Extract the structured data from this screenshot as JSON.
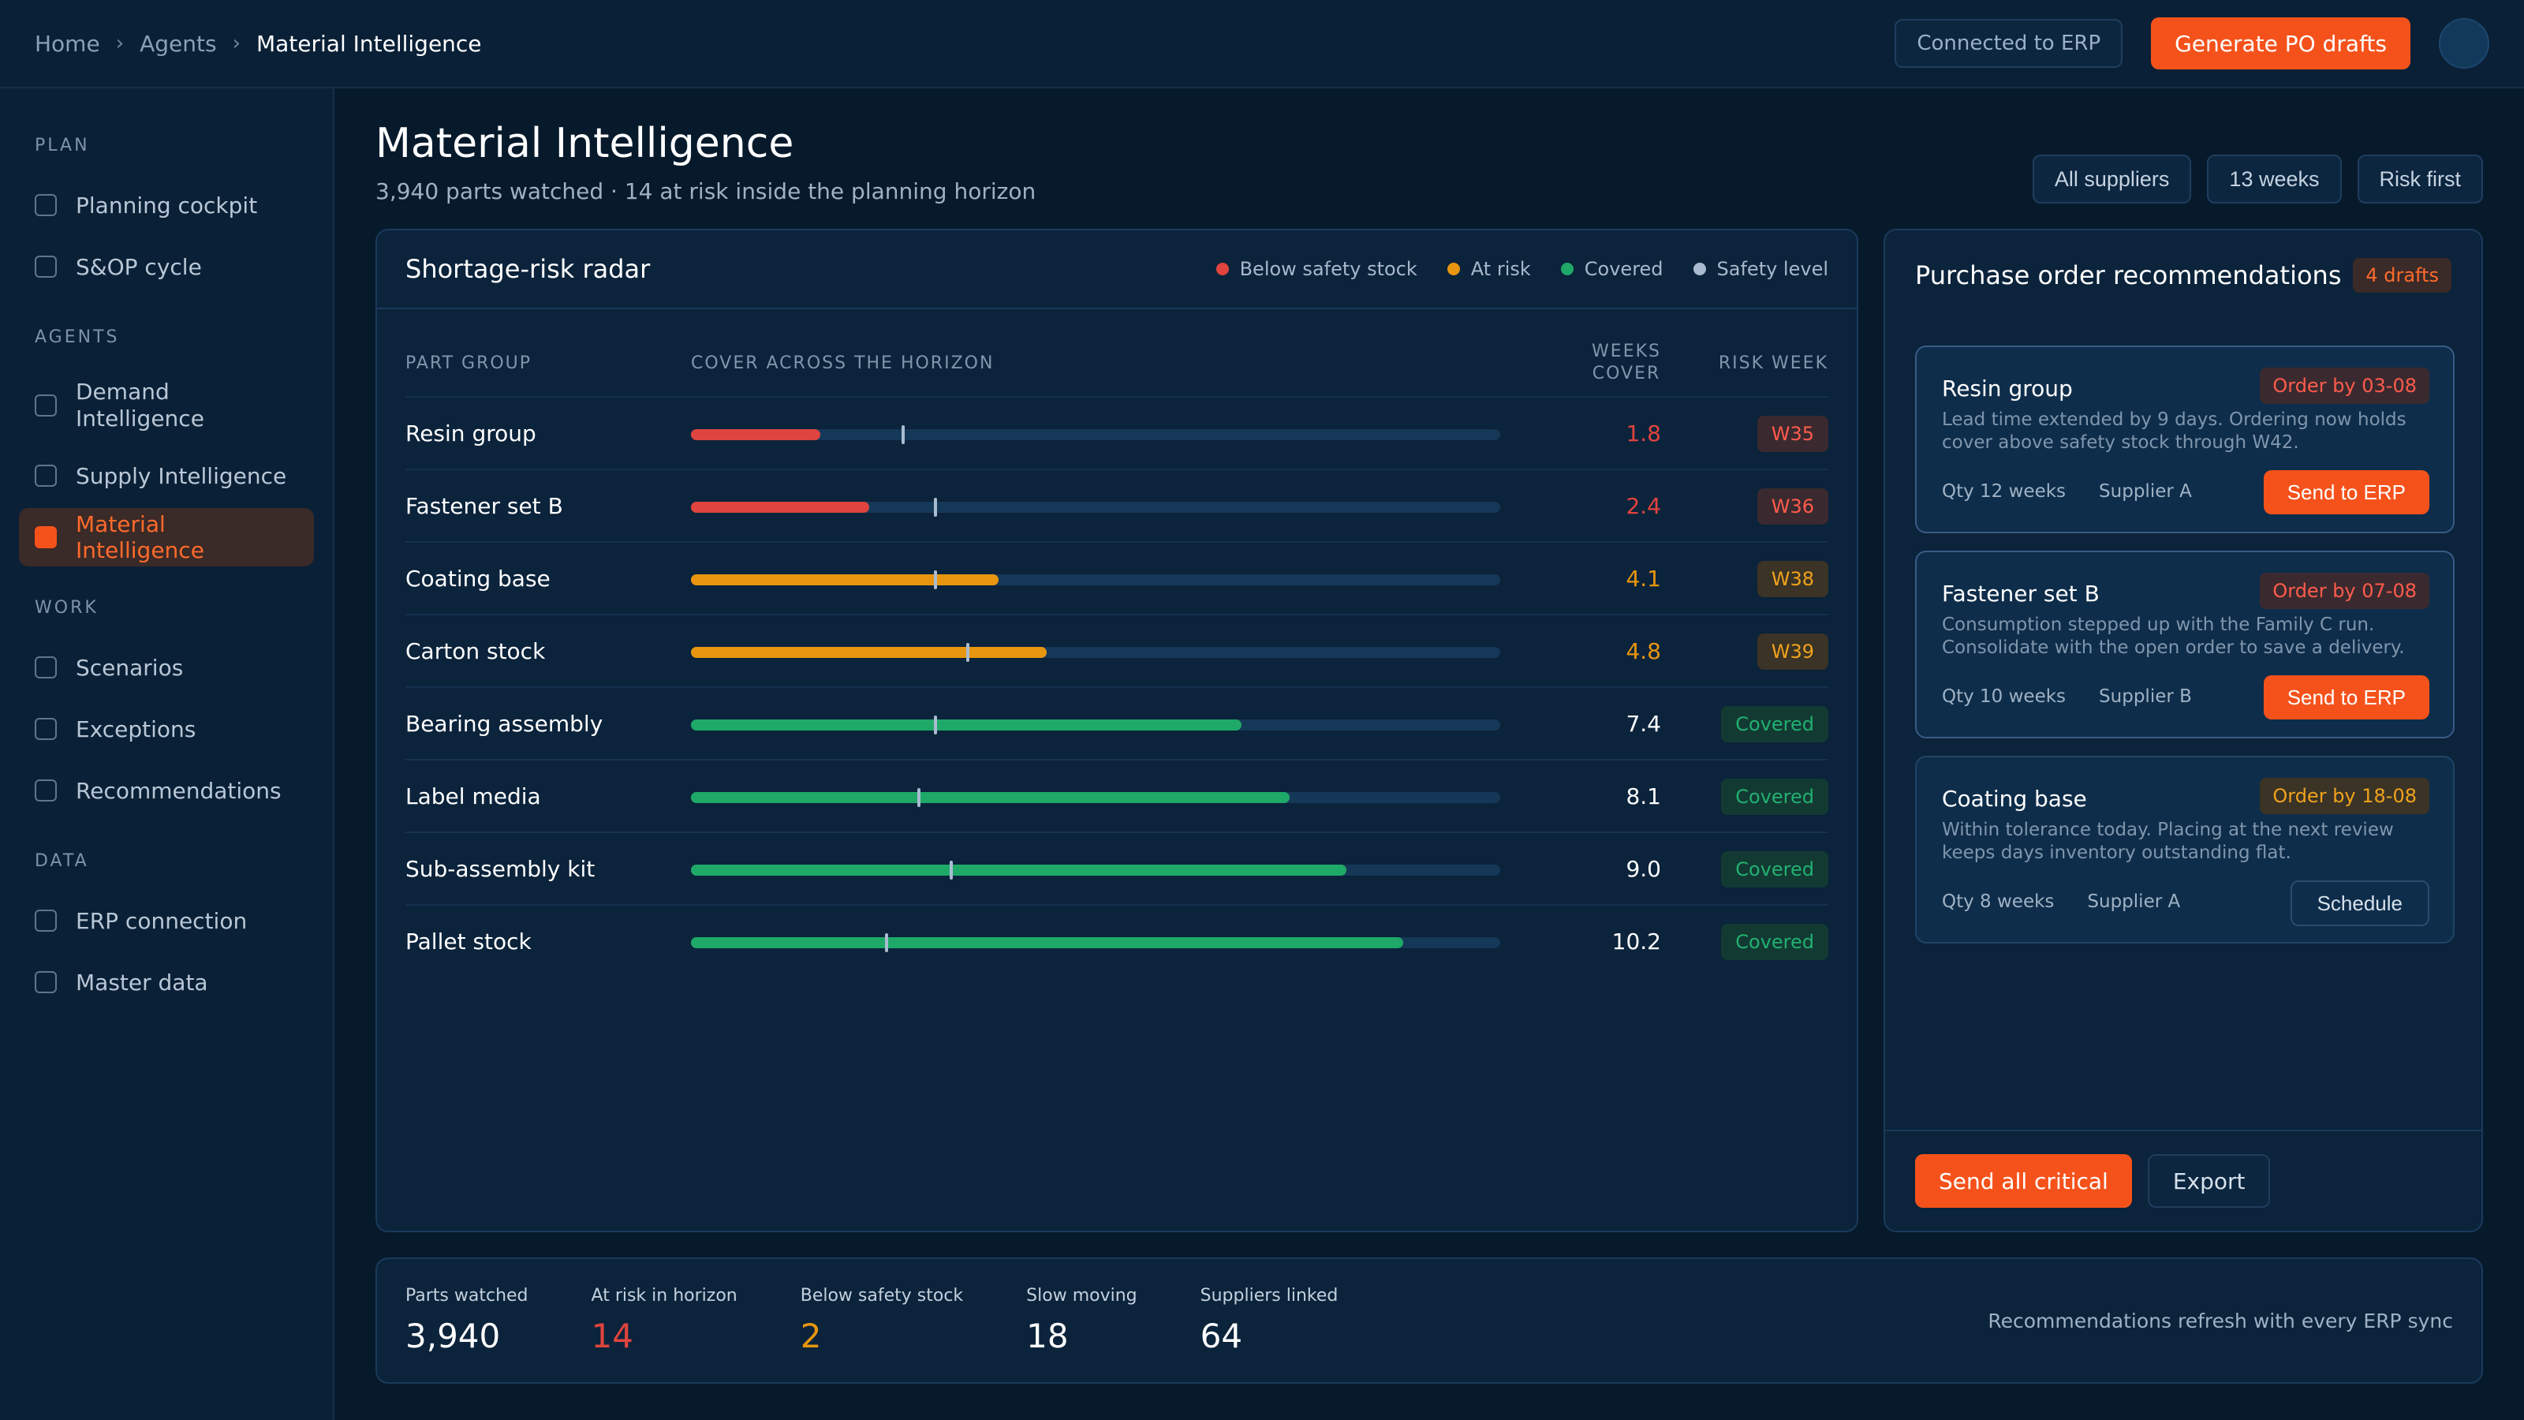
{
  "breadcrumb": [
    "Home",
    "Agents",
    "Material Intelligence"
  ],
  "topbar": {
    "erp_status": "Connected to ERP",
    "generate_label": "Generate PO drafts"
  },
  "sidebar": {
    "sections": [
      {
        "title": "PLAN",
        "items": [
          {
            "label": "Planning cockpit"
          },
          {
            "label": "S&OP cycle"
          }
        ]
      },
      {
        "title": "AGENTS",
        "items": [
          {
            "label": "Demand Intelligence"
          },
          {
            "label": "Supply Intelligence"
          },
          {
            "label": "Material Intelligence",
            "active": true
          }
        ]
      },
      {
        "title": "WORK",
        "items": [
          {
            "label": "Scenarios"
          },
          {
            "label": "Exceptions"
          },
          {
            "label": "Recommendations"
          }
        ]
      },
      {
        "title": "DATA",
        "items": [
          {
            "label": "ERP connection"
          },
          {
            "label": "Master data"
          }
        ]
      }
    ]
  },
  "page": {
    "title": "Material Intelligence",
    "subtitle": "3,940 parts watched · 14 at risk inside the planning horizon",
    "filters": [
      "All suppliers",
      "13 weeks",
      "Risk first"
    ]
  },
  "radar": {
    "title": "Shortage-risk radar",
    "legend": [
      {
        "label": "Below safety stock",
        "color": "#e0443e"
      },
      {
        "label": "At risk",
        "color": "#e8960f"
      },
      {
        "label": "Covered",
        "color": "#1fa968"
      },
      {
        "label": "Safety level",
        "color": "#a9bcd0"
      }
    ],
    "columns": {
      "part": "PART GROUP",
      "cover": "COVER ACROSS THE HORIZON",
      "weeks_line1": "WEEKS",
      "weeks_line2": "COVER",
      "risk": "RISK WEEK"
    },
    "horizon_weeks": 13,
    "rows": [
      {
        "name": "Resin group",
        "weeks": "1.8",
        "cover_fraction": 0.16,
        "safety_fraction": 0.26,
        "status": "below",
        "risk": "W35"
      },
      {
        "name": "Fastener set B",
        "weeks": "2.4",
        "cover_fraction": 0.22,
        "safety_fraction": 0.3,
        "status": "below",
        "risk": "W36"
      },
      {
        "name": "Coating base",
        "weeks": "4.1",
        "cover_fraction": 0.38,
        "safety_fraction": 0.3,
        "status": "at_risk",
        "risk": "W38"
      },
      {
        "name": "Carton stock",
        "weeks": "4.8",
        "cover_fraction": 0.44,
        "safety_fraction": 0.34,
        "status": "at_risk",
        "risk": "W39"
      },
      {
        "name": "Bearing assembly",
        "weeks": "7.4",
        "cover_fraction": 0.68,
        "safety_fraction": 0.3,
        "status": "covered",
        "risk": "Covered"
      },
      {
        "name": "Label media",
        "weeks": "8.1",
        "cover_fraction": 0.74,
        "safety_fraction": 0.28,
        "status": "covered",
        "risk": "Covered"
      },
      {
        "name": "Sub-assembly kit",
        "weeks": "9.0",
        "cover_fraction": 0.81,
        "safety_fraction": 0.32,
        "status": "covered",
        "risk": "Covered"
      },
      {
        "name": "Pallet stock",
        "weeks": "10.2",
        "cover_fraction": 0.88,
        "safety_fraction": 0.24,
        "status": "covered",
        "risk": "Covered"
      }
    ]
  },
  "po": {
    "title": "Purchase order recommendations",
    "drafts_badge": "4 drafts",
    "cards": [
      {
        "title": "Resin group",
        "order_by": "Order by 03-08",
        "urgency": "critical",
        "desc": "Lead time extended by 9 days. Ordering now holds cover above safety stock through W42.",
        "qty": "Qty 12 weeks",
        "supplier": "Supplier A",
        "action": "Send to ERP"
      },
      {
        "title": "Fastener set B",
        "order_by": "Order by 07-08",
        "urgency": "critical",
        "desc": "Consumption stepped up with the Family C run. Consolidate with the open order to save a delivery.",
        "qty": "Qty 10 weeks",
        "supplier": "Supplier B",
        "action": "Send to ERP"
      },
      {
        "title": "Coating base",
        "order_by": "Order by 18-08",
        "urgency": "watch",
        "desc": "Within tolerance today. Placing at the next review keeps days inventory outstanding flat.",
        "qty": "Qty 8 weeks",
        "supplier": "Supplier A",
        "action": "Schedule"
      }
    ],
    "send_all_label": "Send all critical",
    "export_label": "Export"
  },
  "stats": {
    "items": [
      {
        "label": "Parts watched",
        "value": "3,940",
        "color": "#ffffff"
      },
      {
        "label": "At risk in horizon",
        "value": "14",
        "color": "#e0443e"
      },
      {
        "label": "Below safety stock",
        "value": "2",
        "color": "#e8960f"
      },
      {
        "label": "Slow moving",
        "value": "18",
        "color": "#ffffff"
      },
      {
        "label": "Suppliers linked",
        "value": "64",
        "color": "#ffffff"
      }
    ],
    "note": "Recommendations refresh with every ERP sync"
  },
  "colors": {
    "accent": "#f5521b",
    "below": "#e0443e",
    "at_risk": "#e8960f",
    "covered": "#1fa968"
  }
}
